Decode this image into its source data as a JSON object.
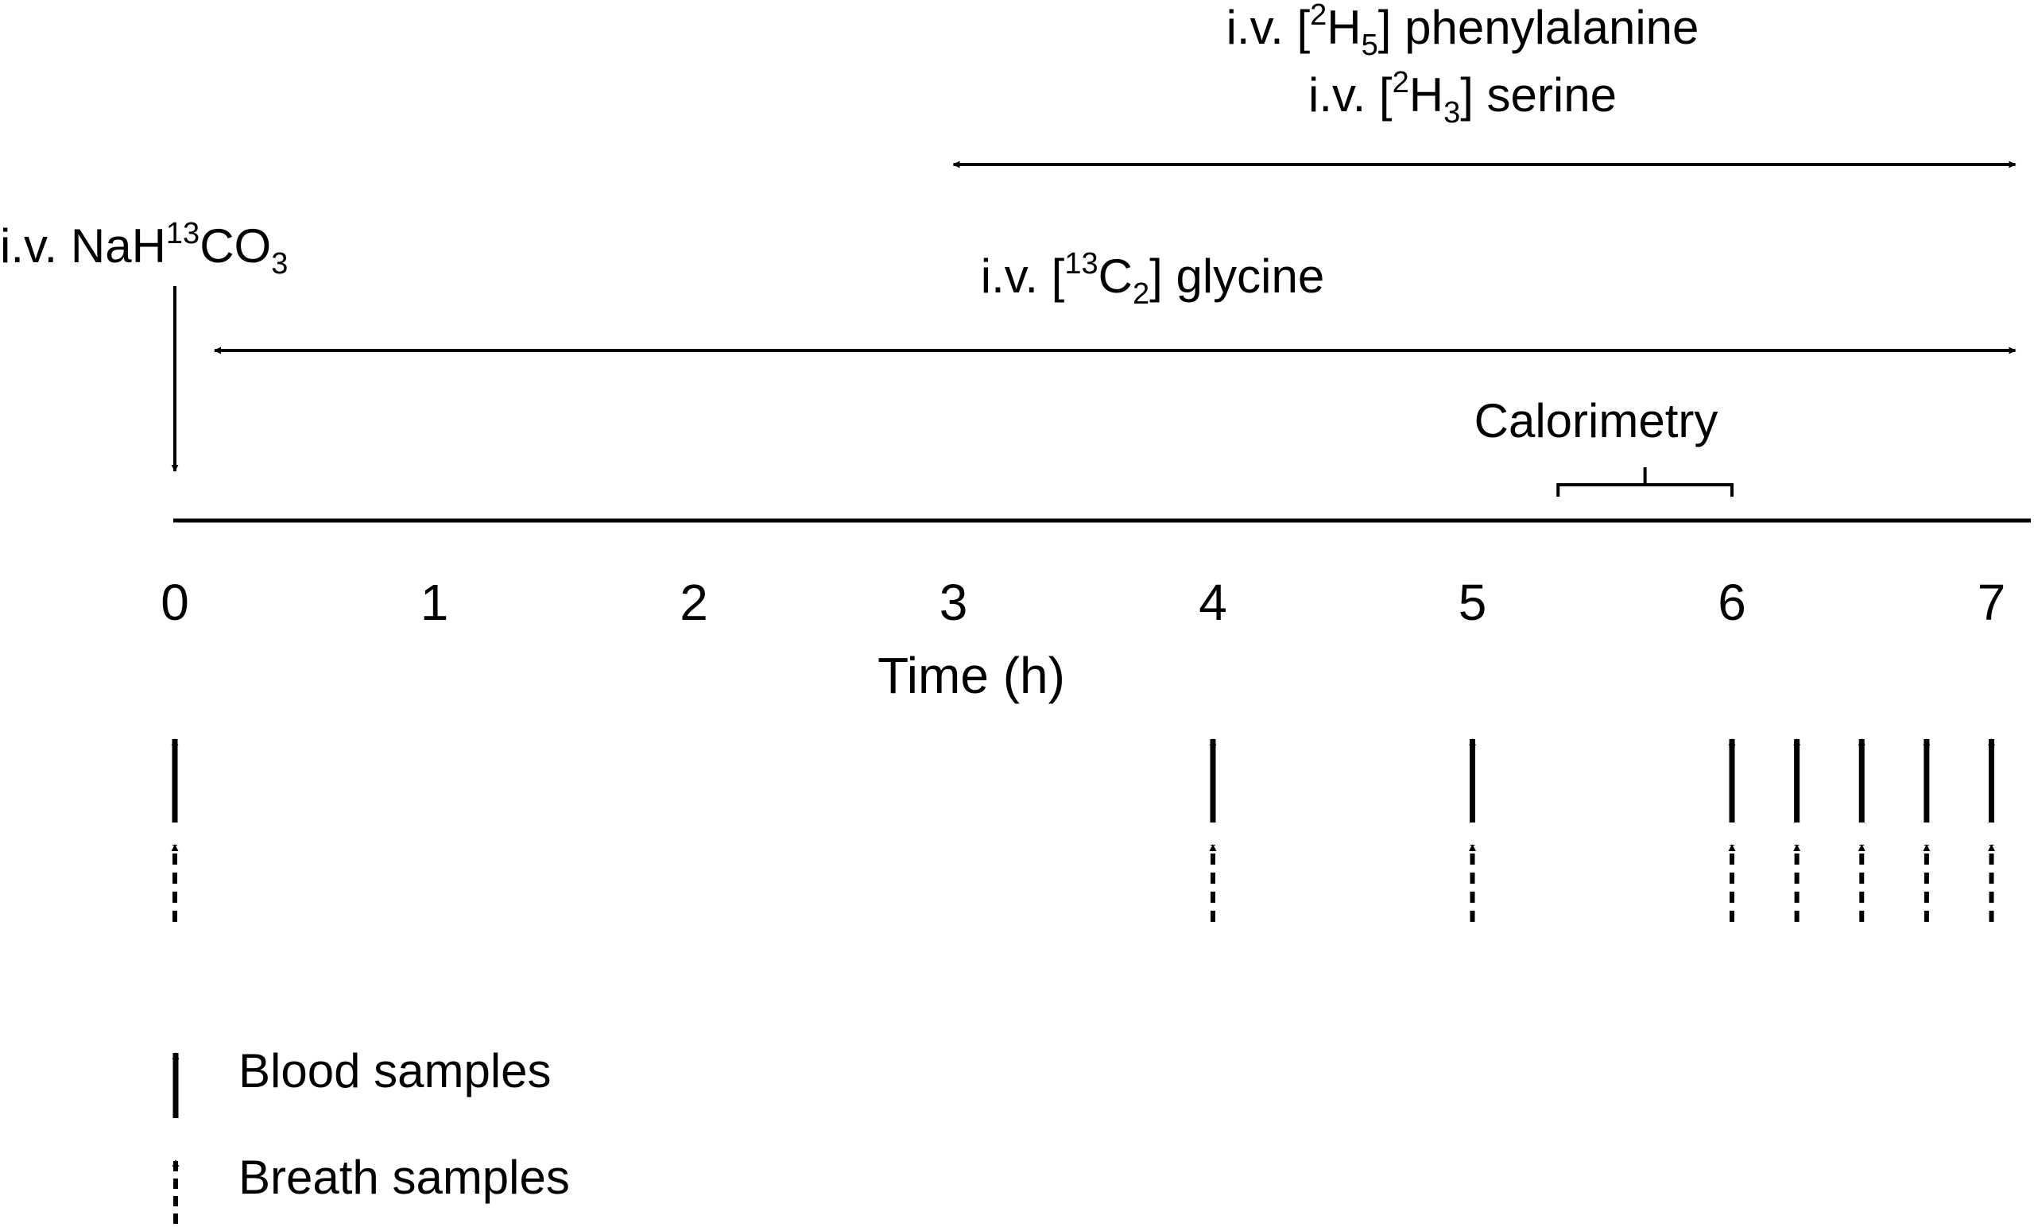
{
  "infusions": {
    "phe_prefix": "i.v. [",
    "phe_mass": "2",
    "phe_element": "H",
    "phe_count": "5",
    "phe_suffix": "] phenylalanine",
    "ser_prefix": "i.v. [",
    "ser_mass": "2",
    "ser_element": "H",
    "ser_count": "3",
    "ser_suffix": "] serine",
    "bicarb_prefix": "i.v. NaH",
    "bicarb_mass": "13",
    "bicarb_mid": "CO",
    "bicarb_count": "3",
    "gly_prefix": "i.v. [",
    "gly_mass": "13",
    "gly_element": "C",
    "gly_count": "2",
    "gly_suffix": "] glycine",
    "phe_ser_window_h": [
      3,
      7
    ],
    "gly_window_h": [
      0,
      7
    ],
    "bicarb_time_h": 0
  },
  "calorimetry": {
    "label": "Calorimetry",
    "window_h": [
      5.33,
      6
    ]
  },
  "timeline": {
    "axis_label": "Time (h)",
    "ticks": [
      "0",
      "1",
      "2",
      "3",
      "4",
      "5",
      "6",
      "7"
    ],
    "range_h": [
      0,
      7
    ]
  },
  "samples": {
    "blood_times_h": [
      0,
      4,
      5,
      6,
      6.25,
      6.5,
      6.75,
      7
    ],
    "breath_times_h": [
      0,
      4,
      5,
      6,
      6.25,
      6.5,
      6.75,
      7
    ]
  },
  "legend": {
    "blood_label": "Blood samples",
    "breath_label": "Breath samples"
  }
}
